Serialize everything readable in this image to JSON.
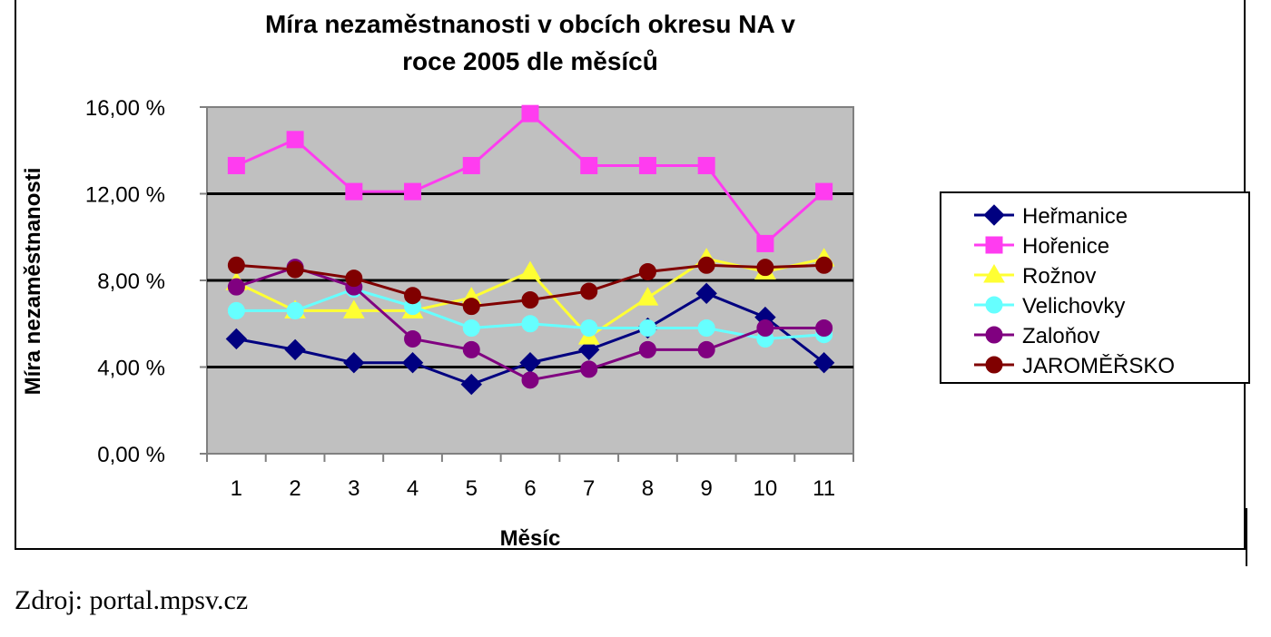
{
  "chart_data": {
    "type": "line",
    "title_lines": [
      "Míra nezaměstnanosti v obcích okresu NA v",
      "roce 2005 dle měsíců"
    ],
    "xlabel": "Měsíc",
    "ylabel": "Míra nezaměstnanosti",
    "x": [
      "1",
      "2",
      "3",
      "4",
      "5",
      "6",
      "7",
      "8",
      "9",
      "10",
      "11"
    ],
    "ylim": [
      0,
      16
    ],
    "yticks": [
      0,
      4,
      8,
      12,
      16
    ],
    "ytick_labels": [
      "0,00 %",
      "4,00 %",
      "8,00 %",
      "12,00 %",
      "16,00 %"
    ],
    "grid": true,
    "plot_background": "#c0c0c0",
    "legend_position": "right",
    "series": [
      {
        "name": "Heřmanice",
        "color": "#000080",
        "marker": "diamond",
        "values": [
          5.3,
          4.8,
          4.2,
          4.2,
          3.2,
          4.2,
          4.8,
          5.8,
          7.4,
          6.3,
          4.2
        ]
      },
      {
        "name": "Hořenice",
        "color": "#ff3cf0",
        "marker": "square",
        "values": [
          13.3,
          14.5,
          12.1,
          12.1,
          13.3,
          15.7,
          13.3,
          13.3,
          13.3,
          9.7,
          12.1
        ]
      },
      {
        "name": "Rožnov",
        "color": "#ffff33",
        "marker": "triangle",
        "values": [
          7.9,
          6.6,
          6.6,
          6.6,
          7.2,
          8.4,
          5.4,
          7.2,
          9.0,
          8.4,
          9.0
        ]
      },
      {
        "name": "Velichovky",
        "color": "#66ffff",
        "marker": "circle",
        "values": [
          6.6,
          6.6,
          7.6,
          6.8,
          5.8,
          6.0,
          5.8,
          5.8,
          5.8,
          5.3,
          5.5
        ]
      },
      {
        "name": "Zaloňov",
        "color": "#800080",
        "marker": "circle",
        "values": [
          7.7,
          8.6,
          7.7,
          5.3,
          4.8,
          3.4,
          3.9,
          4.8,
          4.8,
          5.8,
          5.8
        ]
      },
      {
        "name": "JAROMĚŘSKO",
        "color": "#800000",
        "marker": "circle",
        "values": [
          8.7,
          8.5,
          8.1,
          7.3,
          6.8,
          7.1,
          7.5,
          8.4,
          8.7,
          8.6,
          8.7
        ]
      }
    ]
  },
  "source": "Zdroj: portal.mpsv.cz"
}
